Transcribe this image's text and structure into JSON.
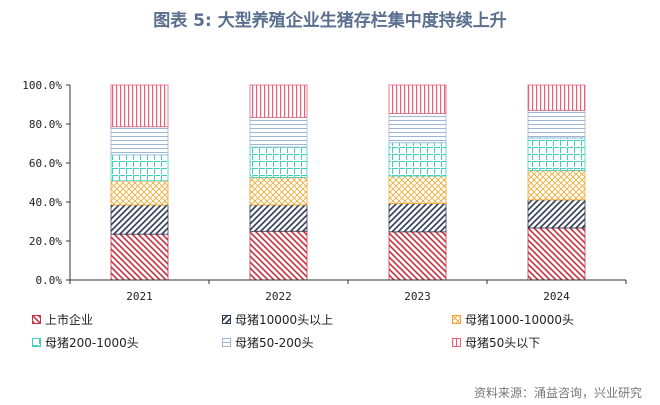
{
  "chart_data": {
    "type": "bar",
    "stacked": true,
    "title": "图表 5:  大型养殖企业生猪存栏集中度持续上升",
    "categories": [
      "2021",
      "2022",
      "2023",
      "2024"
    ],
    "ylim": [
      0,
      100
    ],
    "yticks": [
      "0.0%",
      "20.0%",
      "40.0%",
      "60.0%",
      "80.0%",
      "100.0%"
    ],
    "grid": false,
    "legend_position": "bottom",
    "series": [
      {
        "name": "上市企业",
        "color": "#c8313f",
        "pattern": "diag-down",
        "values": [
          23.5,
          25.0,
          24.7,
          26.7
        ]
      },
      {
        "name": "母猪10000头以上",
        "color": "#2e3b55",
        "pattern": "diag-up",
        "values": [
          15.0,
          13.5,
          14.5,
          14.4
        ]
      },
      {
        "name": "母猪1000-10000头",
        "color": "#f0a830",
        "pattern": "cross",
        "values": [
          12.4,
          14.1,
          14.1,
          15.1
        ]
      },
      {
        "name": "母猪200-1000头",
        "color": "#3fd0c0",
        "pattern": "grid",
        "values": [
          13.3,
          15.6,
          17.1,
          16.7
        ]
      },
      {
        "name": "母猪50-200头",
        "color": "#9fb5d5",
        "pattern": "horizontal",
        "values": [
          14.4,
          15.2,
          15.0,
          14.1
        ]
      },
      {
        "name": "母猪50头以下",
        "color": "#e8607a",
        "pattern": "vertical",
        "values": [
          21.4,
          16.6,
          14.6,
          13.0
        ]
      }
    ]
  },
  "source": "资料来源：涌益咨询，兴业研究"
}
